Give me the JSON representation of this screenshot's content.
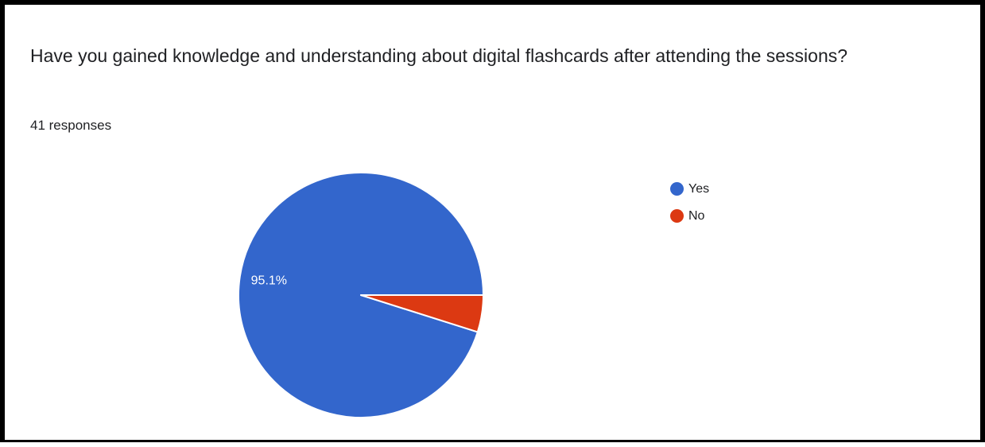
{
  "header": {
    "question": "Have you gained knowledge and understanding about digital flashcards after attending the sessions?",
    "responses": "41 responses"
  },
  "chart_data": {
    "type": "pie",
    "title": "Have you gained knowledge and understanding about digital flashcards after attending the sessions?",
    "total_responses": 41,
    "slices": [
      {
        "name": "Yes",
        "value": 39,
        "percent": 95.1,
        "color": "#3366cc",
        "label": "95.1%"
      },
      {
        "name": "No",
        "value": 2,
        "percent": 4.9,
        "color": "#dc3912",
        "label": ""
      }
    ],
    "legend_position": "right"
  }
}
